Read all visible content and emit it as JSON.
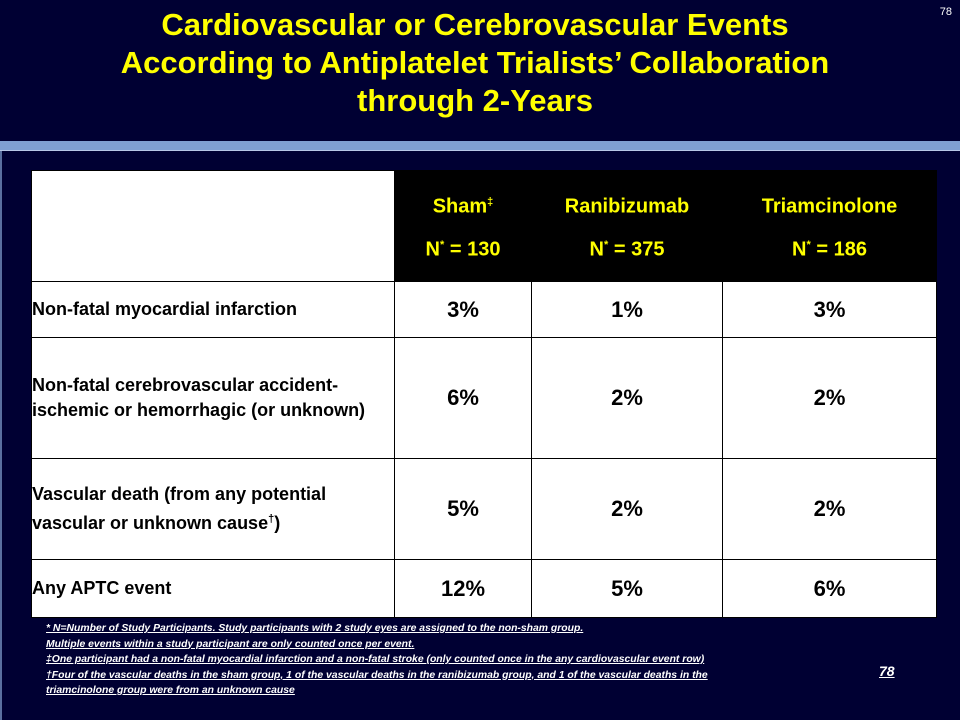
{
  "slide_number": "78",
  "title_lines": [
    "Cardiovascular  or Cerebrovascular Events",
    "According to Antiplatelet Trialists’ Collaboration",
    "through 2-Years"
  ],
  "table": {
    "columns": [
      {
        "name": "Sham",
        "name_mark": "‡",
        "n_label": "N",
        "n_mark": "*",
        "n_value": "= 130"
      },
      {
        "name": "Ranibizumab",
        "name_mark": "",
        "n_label": "N",
        "n_mark": "*",
        "n_value": "= 375"
      },
      {
        "name": "Triamcinolone",
        "name_mark": "",
        "n_label": "N",
        "n_mark": "*",
        "n_value": "= 186"
      }
    ],
    "rows": [
      {
        "label": "Non-fatal myocardial infarction",
        "label_mark": "",
        "label_tail": "",
        "values": [
          "3%",
          "1%",
          "3%"
        ]
      },
      {
        "label": "Non-fatal cerebrovascular accident-ischemic or hemorrhagic (or unknown)",
        "label_mark": "",
        "label_tail": "",
        "values": [
          "6%",
          "2%",
          "2%"
        ]
      },
      {
        "label": "Vascular death (from any potential vascular or unknown cause",
        "label_mark": "†",
        "label_tail": ")",
        "values": [
          "5%",
          "2%",
          "2%"
        ]
      },
      {
        "label": "Any APTC event",
        "label_mark": "",
        "label_tail": "",
        "values": [
          "12%",
          "5%",
          "6%"
        ]
      }
    ]
  },
  "footnotes": [
    "* N=Number of Study Participants. Study participants with 2 study eyes are assigned to the non-sham group.",
    "Multiple events within a study participant are only counted once per event.",
    "‡One participant had a non-fatal myocardial infarction and a non-fatal stroke (only counted once in the any cardiovascular event row)",
    "†Four of the vascular deaths in the sham group, 1 of the vascular deaths in the ranibizumab group, and 1 of the vascular deaths in the triamcinolone group were from an unknown cause"
  ],
  "colors": {
    "background": "#000033",
    "title": "#ffff00",
    "header_text": "#ffff00",
    "header_bg": "#000000",
    "rule": "#7f9fd3"
  }
}
